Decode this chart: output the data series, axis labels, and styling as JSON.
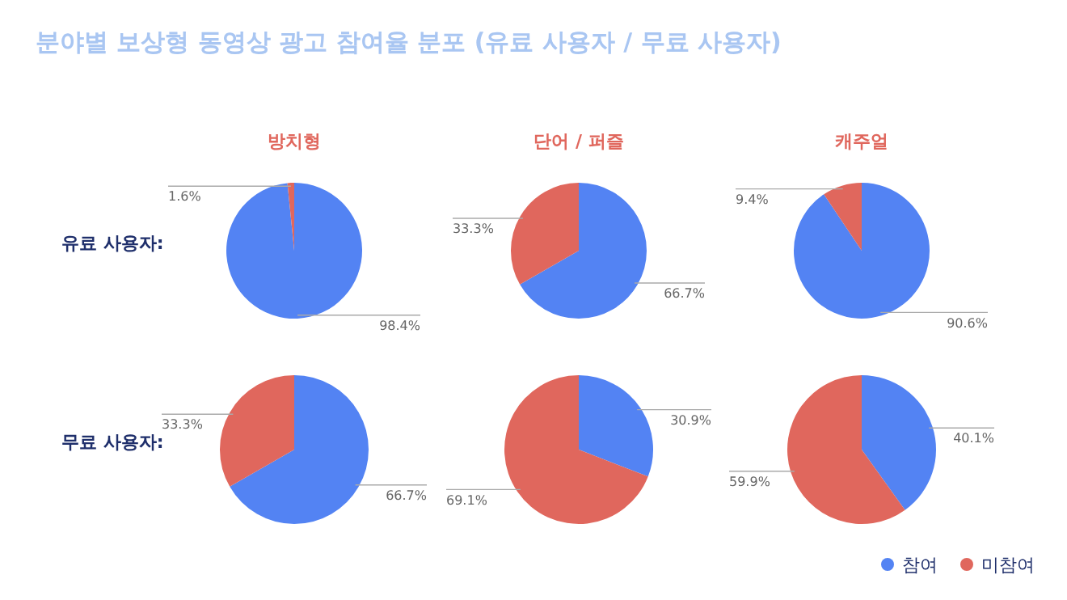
{
  "chart_data": [
    {
      "type": "other",
      "title": "분야별 보상형 동영상 광고 참여율 분포 (유료 사용자 / 무료 사용자)"
    },
    {
      "type": "pie",
      "title": "방치형",
      "ylabel": "유료 사용자:",
      "categories": [
        "참여",
        "미참여"
      ],
      "values": [
        98.4,
        1.6
      ],
      "colors": [
        "#5383f3",
        "#e0675d"
      ],
      "value_labels": [
        "98.4%",
        "1.6%"
      ],
      "legend": "bottom right"
    },
    {
      "type": "pie",
      "title": "단어 / 퍼즐",
      "categories": [
        null,
        null
      ],
      "values": [
        66.7,
        33.3
      ],
      "colors": [
        "#5383f3",
        "#e0675d"
      ],
      "value_labels": [
        "66.7%",
        "33.3%"
      ]
    },
    {
      "type": "pie",
      "title": "캐주얼",
      "categories": [
        null,
        null
      ],
      "values": [
        90.6,
        9.4
      ],
      "colors": [
        "#5383f3",
        "#e0675d"
      ],
      "value_labels": [
        "90.6%",
        "9.4%"
      ]
    },
    {
      "type": "pie",
      "ylabel": "무료 사용자:",
      "categories": [
        null,
        null
      ],
      "values": [
        66.7,
        33.3
      ],
      "colors": [
        "#5383f3",
        "#e0675d"
      ],
      "value_labels": [
        "66.7%",
        "33.3%"
      ]
    },
    {
      "type": "pie",
      "categories": [
        null,
        null
      ],
      "values": [
        30.9,
        69.1
      ],
      "colors": [
        "#5383f3",
        "#e0675d"
      ],
      "value_labels": [
        "30.9%",
        "69.1%"
      ]
    },
    {
      "type": "pie",
      "categories": [
        null,
        null
      ],
      "values": [
        40.1,
        59.9
      ],
      "colors": [
        "#5383f3",
        "#e0675d"
      ],
      "value_labels": [
        "40.1%",
        "59.9%"
      ]
    }
  ]
}
